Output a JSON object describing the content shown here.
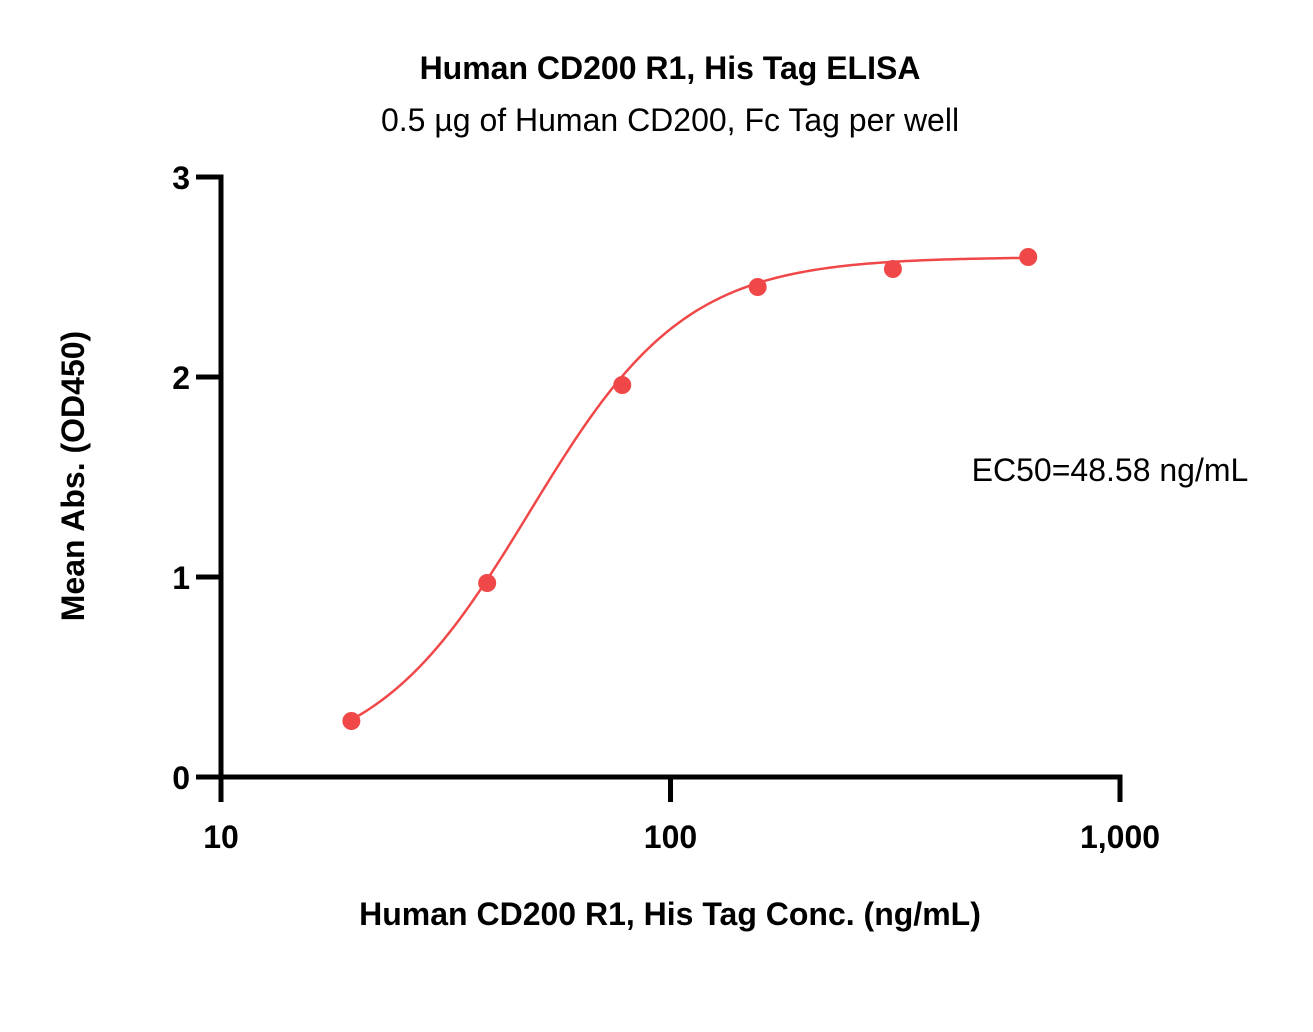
{
  "chart_data": {
    "type": "scatter",
    "title": "Human CD200 R1, His Tag ELISA",
    "subtitle": "0.5 µg of Human CD200, Fc Tag per well",
    "xlabel": "Human CD200 R1, His Tag Conc. (ng/mL)",
    "ylabel": "Mean Abs. (OD450)",
    "x_scale": "log",
    "xlim": [
      10,
      1000
    ],
    "ylim": [
      0,
      3
    ],
    "x_ticks": [
      10,
      100,
      1000
    ],
    "x_tick_labels": [
      "10",
      "100",
      "1,000"
    ],
    "y_ticks": [
      0,
      1,
      2,
      3
    ],
    "y_tick_labels": [
      "0",
      "1",
      "2",
      "3"
    ],
    "grid": false,
    "series": [
      {
        "x": [
          19.5,
          39.1,
          78.1,
          156.3,
          312.5,
          625
        ],
        "y": [
          0.28,
          0.97,
          1.96,
          2.45,
          2.54,
          2.6
        ],
        "color": "#F04848",
        "fit": "4PL",
        "fit_params": {
          "bottom": 0.05,
          "top": 2.6,
          "ec50": 48.58,
          "hill": 2.5
        }
      }
    ],
    "annotation": "EC50=48.58 ng/mL"
  }
}
